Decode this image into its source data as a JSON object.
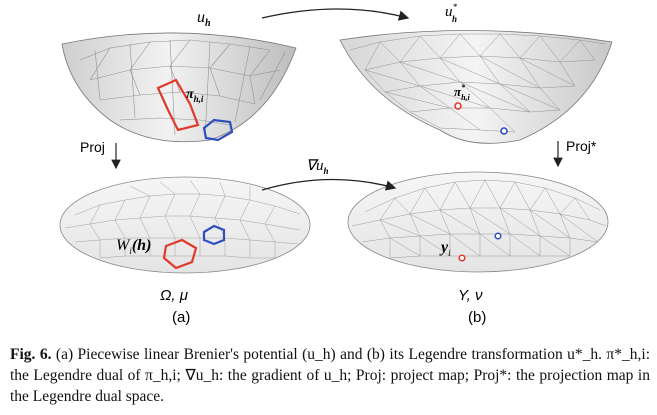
{
  "figure": {
    "labels": {
      "uh": "u",
      "uh_sub": "h",
      "uh_star": "u",
      "uh_star_sup": "*",
      "uh_star_sub": "h",
      "pi": "π",
      "pi_sub": "h,i",
      "pi_star": "π",
      "pi_star_sup": "*",
      "pi_star_sub": "h,i",
      "proj": "Proj",
      "proj_star": "Proj*",
      "grad": "∇u",
      "grad_sub": "h",
      "wi": "W",
      "wi_sub": "i",
      "wi_arg": "(h)",
      "yi": "y",
      "yi_sub": "i",
      "omega_mu": "Ω, μ",
      "y_nu": "Y, ν",
      "panel_a": "(a)",
      "panel_b": "(b)"
    },
    "colors": {
      "highlight_red": "#e03a2a",
      "highlight_blue": "#2f4fc0",
      "surface_fill": "#d9d9d9",
      "mesh_line": "#8a8a8a"
    }
  },
  "caption": {
    "prefix": "Fig. 6.",
    "text": "(a) Piecewise linear Brenier's potential (u_h) and (b) its Legendre transformation u*_h. π*_h,i: the Legendre dual of π_h,i; ∇u_h: the gradient of u_h; Proj: project map; Proj*: the projection map in the Legendre dual space."
  }
}
